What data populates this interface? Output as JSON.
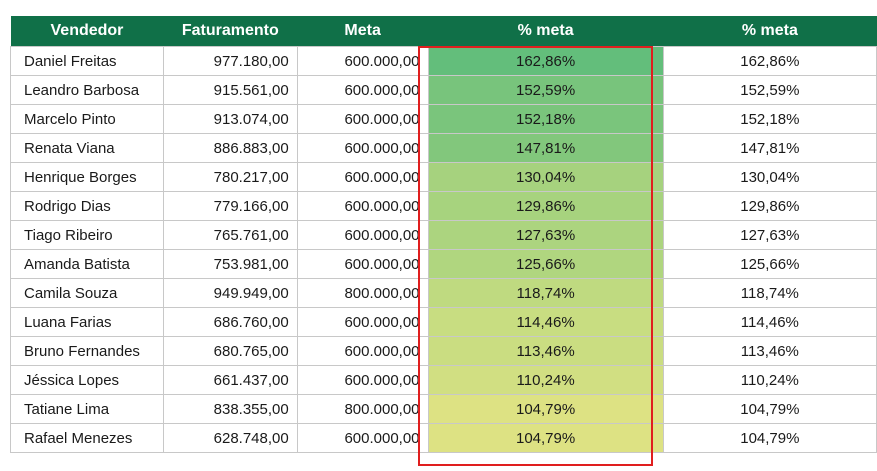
{
  "headers": [
    "Vendedor",
    "Faturamento",
    "Meta",
    "% meta",
    "% meta"
  ],
  "rows": [
    {
      "vendedor": "Daniel Freitas",
      "faturamento": "977.180,00",
      "meta": "600.000,00",
      "pct": "162,86%",
      "pct2": "162,86%",
      "color": "#63be7b"
    },
    {
      "vendedor": "Leandro Barbosa",
      "faturamento": "915.561,00",
      "meta": "600.000,00",
      "pct": "152,59%",
      "pct2": "152,59%",
      "color": "#78c47c"
    },
    {
      "vendedor": "Marcelo Pinto",
      "faturamento": "913.074,00",
      "meta": "600.000,00",
      "pct": "152,18%",
      "pct2": "152,18%",
      "color": "#7ac57c"
    },
    {
      "vendedor": "Renata Viana",
      "faturamento": "886.883,00",
      "meta": "600.000,00",
      "pct": "147,81%",
      "pct2": "147,81%",
      "color": "#82c77c"
    },
    {
      "vendedor": "Henrique Borges",
      "faturamento": "780.217,00",
      "meta": "600.000,00",
      "pct": "130,04%",
      "pct2": "130,04%",
      "color": "#a6d27e"
    },
    {
      "vendedor": "Rodrigo Dias",
      "faturamento": "779.166,00",
      "meta": "600.000,00",
      "pct": "129,86%",
      "pct2": "129,86%",
      "color": "#a7d37e"
    },
    {
      "vendedor": "Tiago Ribeiro",
      "faturamento": "765.761,00",
      "meta": "600.000,00",
      "pct": "127,63%",
      "pct2": "127,63%",
      "color": "#acd47f"
    },
    {
      "vendedor": "Amanda Batista",
      "faturamento": "753.981,00",
      "meta": "600.000,00",
      "pct": "125,66%",
      "pct2": "125,66%",
      "color": "#b0d67f"
    },
    {
      "vendedor": "Camila Souza",
      "faturamento": "949.949,00",
      "meta": "800.000,00",
      "pct": "118,74%",
      "pct2": "118,74%",
      "color": "#bfda80"
    },
    {
      "vendedor": "Luana Farias",
      "faturamento": "686.760,00",
      "meta": "600.000,00",
      "pct": "114,46%",
      "pct2": "114,46%",
      "color": "#c8dd81"
    },
    {
      "vendedor": "Bruno Fernandes",
      "faturamento": "680.765,00",
      "meta": "600.000,00",
      "pct": "113,46%",
      "pct2": "113,46%",
      "color": "#cadd81"
    },
    {
      "vendedor": "Jéssica Lopes",
      "faturamento": "661.437,00",
      "meta": "600.000,00",
      "pct": "110,24%",
      "pct2": "110,24%",
      "color": "#d1df82"
    },
    {
      "vendedor": "Tatiane Lima",
      "faturamento": "838.355,00",
      "meta": "800.000,00",
      "pct": "104,79%",
      "pct2": "104,79%",
      "color": "#dde283"
    },
    {
      "vendedor": "Rafael Menezes",
      "faturamento": "628.748,00",
      "meta": "600.000,00",
      "pct": "104,79%",
      "pct2": "104,79%",
      "color": "#dde283"
    }
  ],
  "colors": {
    "header_bg": "#107048",
    "header_text": "#ffffff",
    "highlight_border": "#e01e1e",
    "grid": "#c8c8c8"
  }
}
